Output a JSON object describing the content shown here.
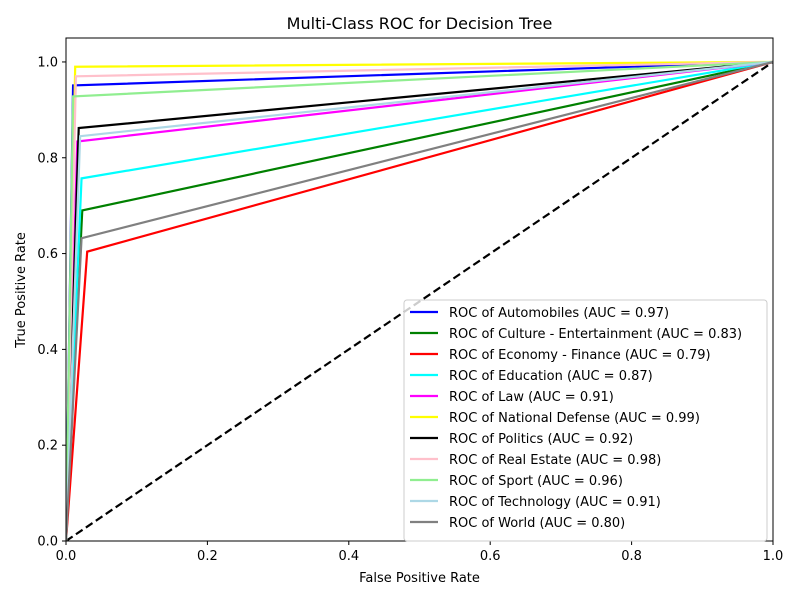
{
  "chart_data": {
    "type": "line",
    "title": "Multi-Class ROC for Decision Tree",
    "xlabel": "False Positive Rate",
    "ylabel": "True Positive Rate",
    "xlim": [
      0.0,
      1.0
    ],
    "ylim": [
      0.0,
      1.05
    ],
    "xticks": [
      "0.0",
      "0.2",
      "0.4",
      "0.6",
      "0.8",
      "1.0"
    ],
    "yticks": [
      "0.0",
      "0.2",
      "0.4",
      "0.6",
      "0.8",
      "1.0"
    ],
    "grid": false,
    "legend_position": "lower-right",
    "diagonal": {
      "x": [
        0,
        1
      ],
      "y": [
        0,
        1
      ],
      "color": "#000000",
      "style": "dashed"
    },
    "series": [
      {
        "name": "ROC of Automobiles (AUC = 0.97)",
        "color": "#0000ff",
        "x": [
          0,
          0.01,
          1
        ],
        "y": [
          0,
          0.951,
          1
        ]
      },
      {
        "name": "ROC of Culture - Entertainment (AUC = 0.83)",
        "color": "#008000",
        "x": [
          0,
          0.023,
          1
        ],
        "y": [
          0,
          0.69,
          1
        ]
      },
      {
        "name": "ROC of Economy - Finance (AUC = 0.79)",
        "color": "#ff0000",
        "x": [
          0,
          0.03,
          1
        ],
        "y": [
          0,
          0.604,
          1
        ]
      },
      {
        "name": "ROC of Education (AUC = 0.87)",
        "color": "#00ffff",
        "x": [
          0,
          0.022,
          1
        ],
        "y": [
          0,
          0.757,
          1
        ]
      },
      {
        "name": "ROC of Law (AUC = 0.91)",
        "color": "#ff00ff",
        "x": [
          0,
          0.016,
          1
        ],
        "y": [
          0,
          0.834,
          1
        ]
      },
      {
        "name": "ROC of National Defense (AUC = 0.99)",
        "color": "#ffff00",
        "x": [
          0,
          0.013,
          1
        ],
        "y": [
          0,
          0.99,
          1
        ]
      },
      {
        "name": "ROC of Politics (AUC = 0.92)",
        "color": "#000000",
        "x": [
          0,
          0.018,
          1
        ],
        "y": [
          0,
          0.862,
          1
        ]
      },
      {
        "name": "ROC of Real Estate (AUC = 0.98)",
        "color": "#ffc0cb",
        "x": [
          0,
          0.014,
          1
        ],
        "y": [
          0,
          0.97,
          1
        ]
      },
      {
        "name": "ROC of Sport (AUC = 0.96)",
        "color": "#90ee90",
        "x": [
          0,
          0.01,
          1
        ],
        "y": [
          0,
          0.928,
          1
        ]
      },
      {
        "name": "ROC of Technology (AUC = 0.91)",
        "color": "#add8e6",
        "x": [
          0,
          0.02,
          1
        ],
        "y": [
          0,
          0.845,
          1
        ]
      },
      {
        "name": "ROC of World (AUC = 0.80)",
        "color": "#808080",
        "x": [
          0,
          0.022,
          1
        ],
        "y": [
          0,
          0.632,
          1
        ]
      }
    ]
  }
}
